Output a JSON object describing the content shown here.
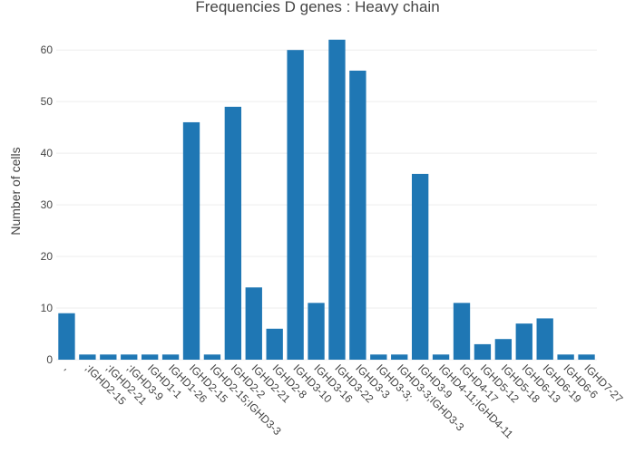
{
  "chart_data": {
    "type": "bar",
    "title": "Frequencies D genes : Heavy chain",
    "ylabel": "Number of cells",
    "categories": [
      ",",
      ";IGHD2-15",
      ";IGHD2-21",
      ";IGHD3-9",
      "IGHD1-1",
      "IGHD1-26",
      "IGHD2-15",
      "IGHD2-15;IGHD3-3",
      "IGHD2-2",
      "IGHD2-21",
      "IGHD2-8",
      "IGHD3-10",
      "IGHD3-16",
      "IGHD3-22",
      "IGHD3-3",
      "IGHD3-3;",
      "IGHD3-3;IGHD3-3",
      "IGHD3-9",
      "IGHD4-11;IGHD4-11",
      "IGHD4-17",
      "IGHD5-12",
      "IGHD5-18",
      "IGHD6-13",
      "IGHD6-19",
      "IGHD6-6",
      "IGHD7-27"
    ],
    "values": [
      9,
      1,
      1,
      1,
      1,
      1,
      46,
      1,
      49,
      14,
      6,
      60,
      11,
      62,
      56,
      1,
      1,
      36,
      1,
      11,
      3,
      4,
      7,
      8,
      1,
      1
    ],
    "color": "#1f77b4",
    "ylim": [
      0,
      65.3
    ],
    "yticks": [
      0,
      10,
      20,
      30,
      40,
      50,
      60
    ],
    "grid": true
  }
}
